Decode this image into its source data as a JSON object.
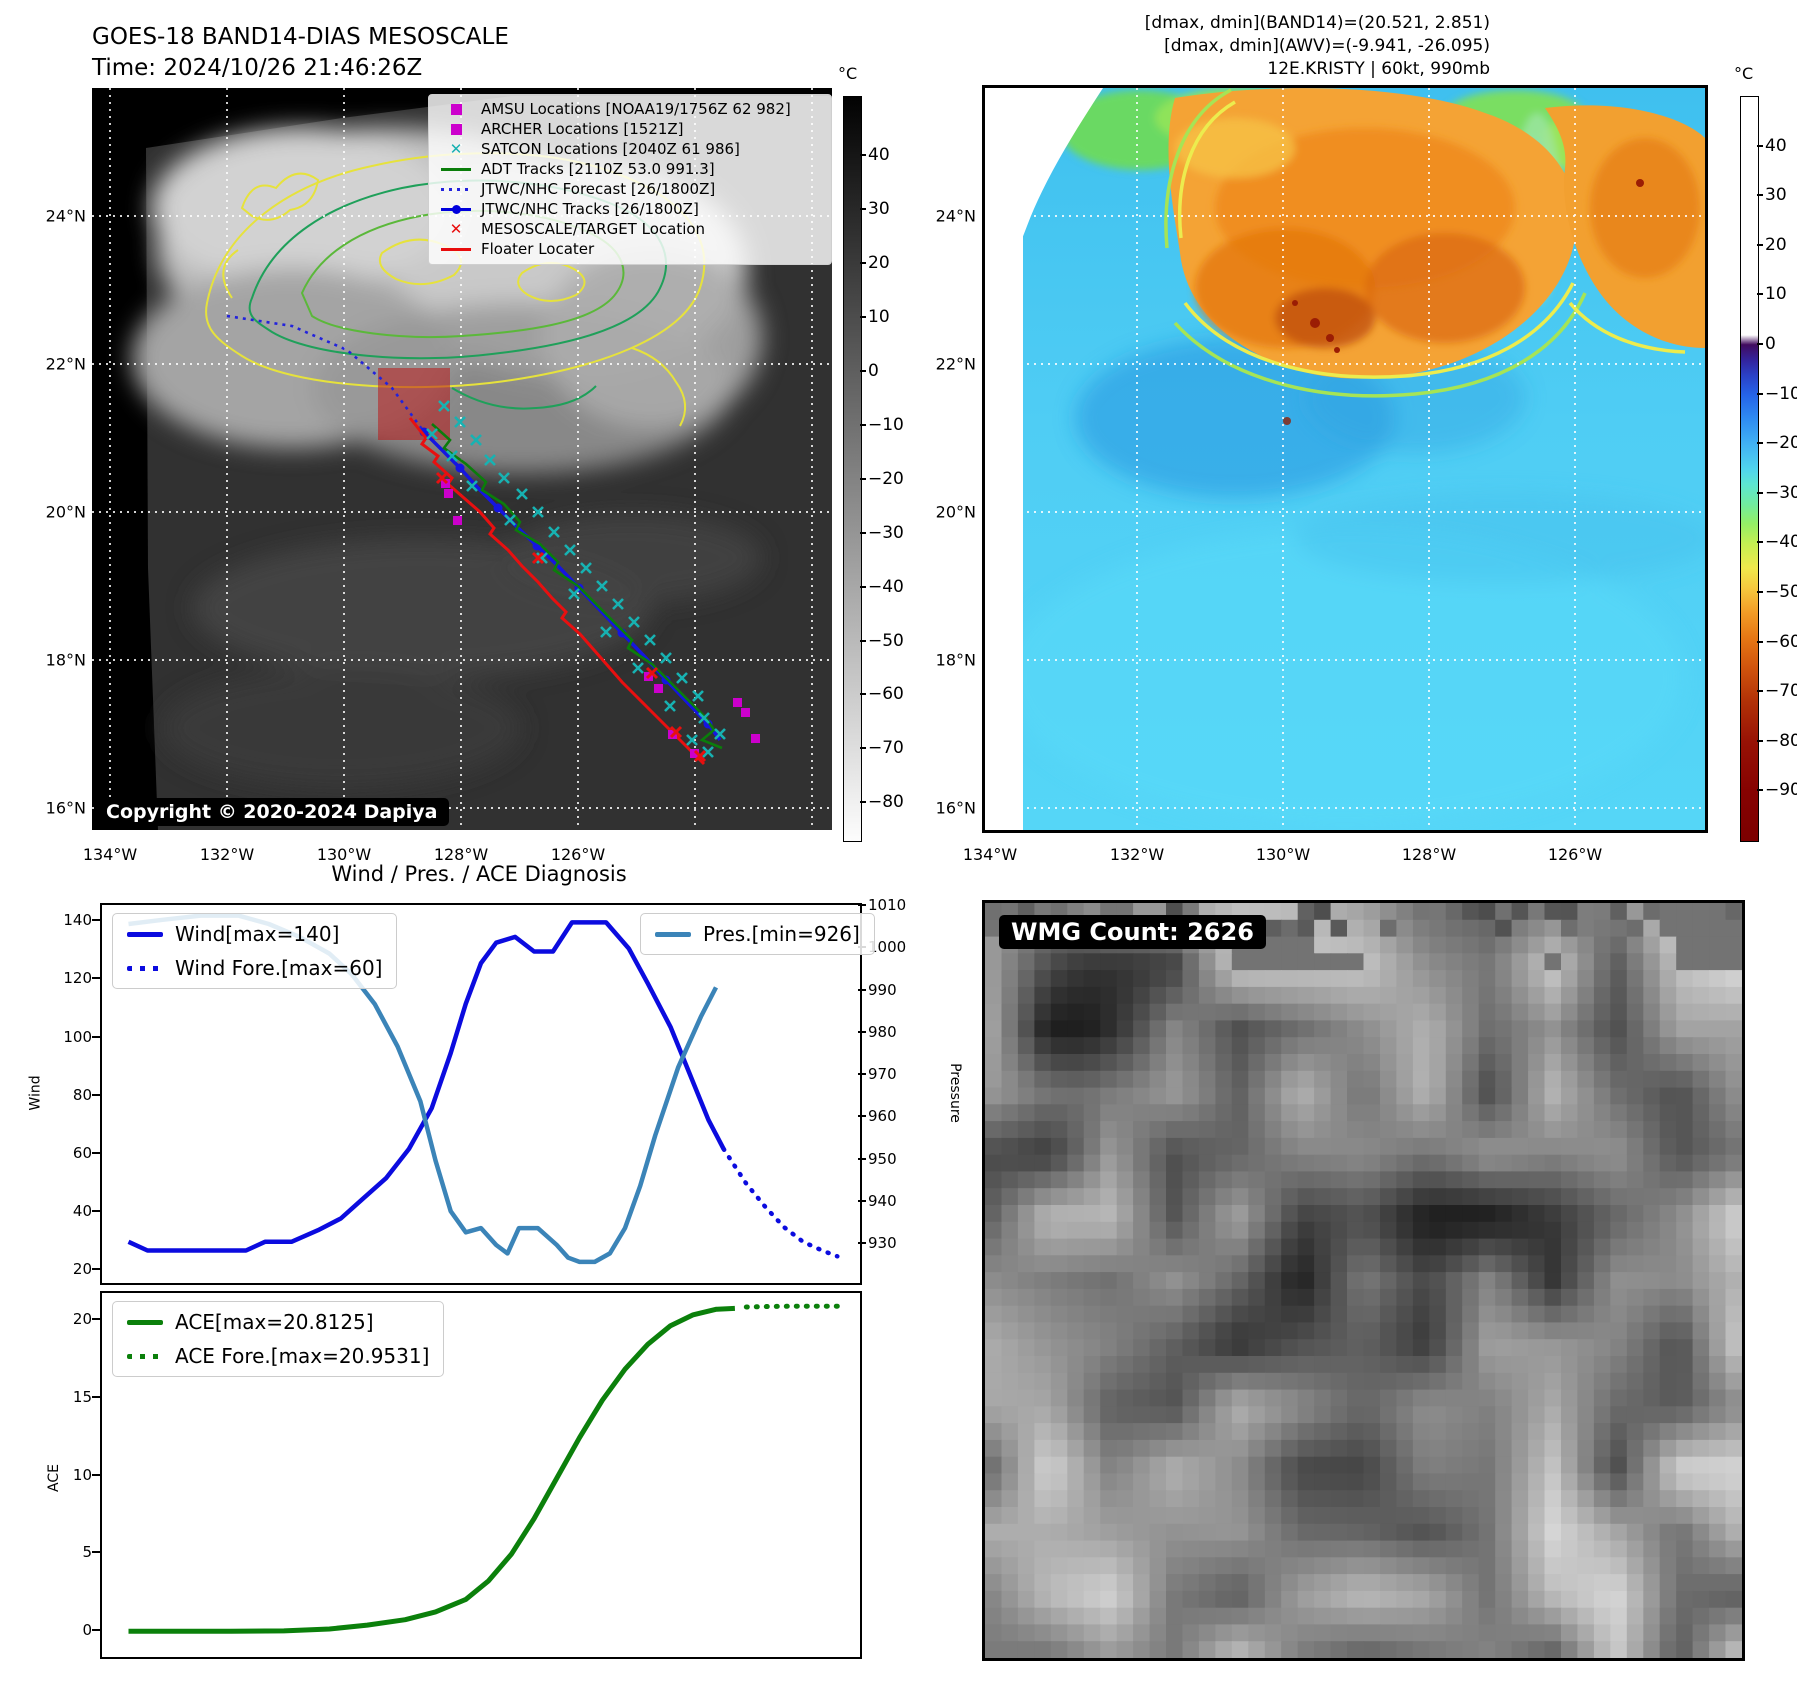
{
  "panel1": {
    "title_line1": "GOES-18 BAND14-DIAS MESOSCALE",
    "title_line2": "Time: 2024/10/26 21:46:26Z",
    "copyright": "Copyright © 2020-2024 Dapiya",
    "lat_ticks": [
      "24°N",
      "22°N",
      "20°N",
      "18°N",
      "16°N"
    ],
    "lon_ticks": [
      "134°W",
      "132°W",
      "130°W",
      "128°W",
      "126°W"
    ],
    "colorbar": {
      "unit": "°C",
      "ticks": [
        40,
        30,
        20,
        10,
        0,
        -10,
        -20,
        -30,
        -40,
        -50,
        -60,
        -70,
        -80
      ],
      "range": [
        51,
        -87
      ]
    },
    "legend": {
      "items": [
        {
          "label": "AMSU Locations [NOAA19/1756Z 62 982]",
          "marker": "square",
          "color": "#cc00cc"
        },
        {
          "label": "ARCHER Locations [1521Z]",
          "marker": "square",
          "color": "#cc00cc"
        },
        {
          "label": "SATCON Locations [2040Z 61 986]",
          "marker": "x",
          "color": "#17b0b0"
        },
        {
          "label": "ADT Tracks [2110Z 53.0 991.3]",
          "marker": "line",
          "color": "#0a7d0a"
        },
        {
          "label": "JTWC/NHC Forecast [26/1800Z]",
          "marker": "dotted-line",
          "color": "#2222dd"
        },
        {
          "label": "JTWC/NHC Tracks [26/1800Z]",
          "marker": "line-dot",
          "color": "#0000dd"
        },
        {
          "label": "MESOSCALE/TARGET Location",
          "marker": "x",
          "color": "#e80c0c"
        },
        {
          "label": "Floater Locater",
          "marker": "line",
          "color": "#e80c0c"
        }
      ]
    }
  },
  "panel2": {
    "header_line1": "[dmax, dmin](BAND14)=(20.521, 2.851)",
    "header_line2": "[dmax, dmin](AWV)=(-9.941, -26.095)",
    "header_line3": "12E.KRISTY | 60kt, 990mb",
    "lat_ticks": [
      "24°N",
      "22°N",
      "20°N",
      "18°N",
      "16°N"
    ],
    "lon_ticks": [
      "134°W",
      "132°W",
      "130°W",
      "128°W",
      "126°W"
    ],
    "colorbar": {
      "unit": "°C",
      "ticks": [
        40,
        30,
        20,
        10,
        0,
        -10,
        -20,
        -30,
        -40,
        -50,
        -60,
        -70,
        -80,
        -90
      ],
      "range": [
        50,
        -100
      ]
    }
  },
  "panel3": {
    "title": "Wind / Pres. / ACE Diagnosis"
  },
  "panel4": {
    "badge": "WMG Count: 2626"
  },
  "chart_data": [
    {
      "type": "line",
      "title": "Wind / Pres. / ACE Diagnosis",
      "ylabel_left": "Wind",
      "ylabel_right": "Pressure",
      "ylim_left": [
        15.8,
        146
      ],
      "ylim_right": [
        921,
        1010.5
      ],
      "yticks_left": [
        140,
        120,
        100,
        80,
        60,
        40,
        20
      ],
      "yticks_right": [
        1010,
        1000,
        990,
        980,
        970,
        960,
        950,
        940,
        930
      ],
      "grid": false,
      "series": [
        {
          "name": "Wind[max=140]",
          "axis": "left",
          "style": "solid",
          "color": "#0b0bdf",
          "width": 4.5,
          "x": [
            0.035,
            0.06,
            0.09,
            0.13,
            0.165,
            0.19,
            0.215,
            0.25,
            0.285,
            0.315,
            0.345,
            0.375,
            0.405,
            0.435,
            0.46,
            0.48,
            0.5,
            0.52,
            0.545,
            0.57,
            0.595,
            0.62,
            0.645,
            0.665,
            0.695,
            0.72,
            0.75,
            0.775,
            0.8,
            0.82
          ],
          "y": [
            30,
            27,
            27,
            27,
            27,
            27,
            30,
            30,
            34,
            38,
            45,
            52,
            62,
            76,
            95,
            112,
            126,
            133,
            135,
            130,
            130,
            140,
            140,
            140,
            131,
            119,
            104,
            88,
            72,
            62
          ]
        },
        {
          "name": "Wind Fore.[max=60]",
          "axis": "left",
          "style": "dotted",
          "color": "#0b0bdf",
          "width": 4.5,
          "x": [
            0.82,
            0.85,
            0.875,
            0.9,
            0.925,
            0.95,
            0.97
          ],
          "y": [
            62,
            50,
            42,
            35,
            30,
            27,
            25
          ]
        },
        {
          "name": "Pres.[min=926]",
          "axis": "right",
          "style": "solid",
          "color": "#3b84b8",
          "width": 4.5,
          "x": [
            0.035,
            0.08,
            0.13,
            0.18,
            0.22,
            0.26,
            0.3,
            0.33,
            0.36,
            0.39,
            0.42,
            0.44,
            0.46,
            0.48,
            0.5,
            0.52,
            0.535,
            0.55,
            0.575,
            0.6,
            0.615,
            0.63,
            0.65,
            0.67,
            0.69,
            0.71,
            0.73,
            0.76,
            0.79,
            0.81
          ],
          "y": [
            1006,
            1007,
            1008,
            1008,
            1006,
            1003,
            999,
            994,
            987,
            977,
            964,
            950,
            938,
            933,
            934,
            930,
            928,
            934,
            934,
            930,
            927,
            926,
            926,
            928,
            934,
            944,
            956,
            972,
            984,
            991
          ]
        }
      ],
      "legends": [
        {
          "pos": [
            10,
            8
          ],
          "series": [
            0,
            1
          ]
        },
        {
          "pos": [
            538,
            8
          ],
          "series": [
            2
          ]
        }
      ]
    },
    {
      "type": "line",
      "ylabel_left": "ACE",
      "ylim_left": [
        -1.6,
        21.8
      ],
      "yticks_left": [
        20,
        15,
        10,
        5,
        0
      ],
      "grid": false,
      "series": [
        {
          "name": "ACE[max=20.8125]",
          "axis": "left",
          "style": "solid",
          "color": "#0b800b",
          "width": 5,
          "x": [
            0.035,
            0.1,
            0.17,
            0.24,
            0.3,
            0.35,
            0.4,
            0.44,
            0.48,
            0.51,
            0.54,
            0.57,
            0.6,
            0.63,
            0.66,
            0.69,
            0.72,
            0.75,
            0.78,
            0.81,
            0.835
          ],
          "y": [
            0.05,
            0.05,
            0.05,
            0.08,
            0.2,
            0.45,
            0.8,
            1.3,
            2.1,
            3.3,
            5.0,
            7.3,
            9.9,
            12.5,
            14.9,
            16.9,
            18.5,
            19.7,
            20.4,
            20.75,
            20.81
          ]
        },
        {
          "name": "ACE Fore.[max=20.9531]",
          "axis": "left",
          "style": "dotted",
          "color": "#0b800b",
          "width": 5,
          "x": [
            0.85,
            0.88,
            0.91,
            0.94,
            0.97
          ],
          "y": [
            20.9,
            20.93,
            20.95,
            20.95,
            20.95
          ]
        }
      ],
      "legends": [
        {
          "pos": [
            10,
            8
          ],
          "series": [
            0,
            1
          ]
        }
      ]
    }
  ]
}
